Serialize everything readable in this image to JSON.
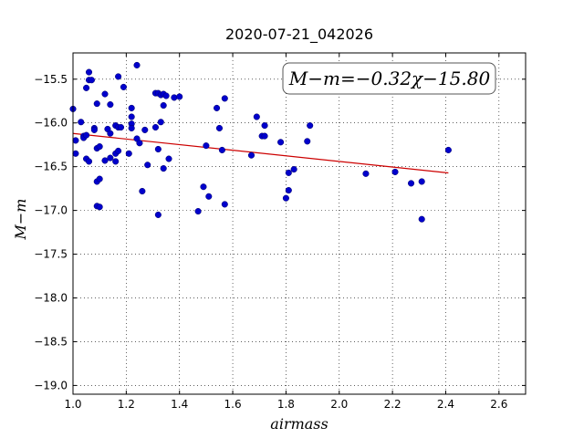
{
  "chart_data": {
    "type": "scatter",
    "title": "2020-07-21_042026",
    "xlabel": "airmass",
    "ylabel": "M−m",
    "xlim": [
      1.0,
      2.7
    ],
    "ylim": [
      -19.1,
      -15.2
    ],
    "y_inverted": true,
    "grid": true,
    "xticks": [
      1.0,
      1.2,
      1.4,
      1.6,
      1.8,
      2.0,
      2.2,
      2.4,
      2.6
    ],
    "xtick_labels": [
      "1.0",
      "1.2",
      "1.4",
      "1.6",
      "1.8",
      "2.0",
      "2.2",
      "2.4",
      "2.6"
    ],
    "yticks": [
      -15.5,
      -16.0,
      -16.5,
      -17.0,
      -17.5,
      -18.0,
      -18.5,
      -19.0
    ],
    "ytick_labels": [
      "−15.5",
      "−16.0",
      "−16.5",
      "−17.0",
      "−17.5",
      "−18.0",
      "−18.5",
      "−19.0"
    ],
    "annotation": "M−m=−0.32χ−15.80",
    "point_color": "#0000cc",
    "fit_color": "#cc0000",
    "fit": {
      "slope": -0.32,
      "intercept": -15.8,
      "x_range": [
        1.0,
        2.41
      ]
    },
    "points": [
      [
        1.0,
        -15.84
      ],
      [
        1.01,
        -16.2
      ],
      [
        1.01,
        -16.35
      ],
      [
        1.03,
        -15.99
      ],
      [
        1.04,
        -16.15
      ],
      [
        1.04,
        -16.17
      ],
      [
        1.05,
        -15.6
      ],
      [
        1.05,
        -16.14
      ],
      [
        1.05,
        -16.41
      ],
      [
        1.06,
        -15.42
      ],
      [
        1.06,
        -15.51
      ],
      [
        1.06,
        -16.44
      ],
      [
        1.07,
        -15.51
      ],
      [
        1.08,
        -16.06
      ],
      [
        1.08,
        -16.08
      ],
      [
        1.09,
        -15.78
      ],
      [
        1.09,
        -16.29
      ],
      [
        1.09,
        -16.67
      ],
      [
        1.09,
        -16.95
      ],
      [
        1.1,
        -16.27
      ],
      [
        1.1,
        -16.64
      ],
      [
        1.1,
        -16.96
      ],
      [
        1.12,
        -15.67
      ],
      [
        1.12,
        -16.43
      ],
      [
        1.13,
        -16.07
      ],
      [
        1.14,
        -16.12
      ],
      [
        1.14,
        -16.4
      ],
      [
        1.14,
        -15.79
      ],
      [
        1.16,
        -16.03
      ],
      [
        1.16,
        -16.35
      ],
      [
        1.16,
        -16.44
      ],
      [
        1.17,
        -15.47
      ],
      [
        1.17,
        -16.05
      ],
      [
        1.17,
        -16.32
      ],
      [
        1.18,
        -16.05
      ],
      [
        1.19,
        -15.59
      ],
      [
        1.21,
        -16.35
      ],
      [
        1.22,
        -15.83
      ],
      [
        1.22,
        -15.93
      ],
      [
        1.22,
        -16.01
      ],
      [
        1.22,
        -16.06
      ],
      [
        1.24,
        -15.34
      ],
      [
        1.24,
        -16.18
      ],
      [
        1.25,
        -16.23
      ],
      [
        1.26,
        -16.78
      ],
      [
        1.27,
        -16.08
      ],
      [
        1.28,
        -16.48
      ],
      [
        1.31,
        -16.05
      ],
      [
        1.31,
        -15.66
      ],
      [
        1.32,
        -15.66
      ],
      [
        1.32,
        -16.3
      ],
      [
        1.32,
        -17.05
      ],
      [
        1.33,
        -15.68
      ],
      [
        1.33,
        -15.99
      ],
      [
        1.34,
        -15.67
      ],
      [
        1.34,
        -15.8
      ],
      [
        1.34,
        -16.52
      ],
      [
        1.35,
        -15.69
      ],
      [
        1.36,
        -16.41
      ],
      [
        1.38,
        -15.71
      ],
      [
        1.4,
        -15.7
      ],
      [
        1.47,
        -17.01
      ],
      [
        1.49,
        -16.73
      ],
      [
        1.5,
        -16.26
      ],
      [
        1.51,
        -16.84
      ],
      [
        1.54,
        -15.83
      ],
      [
        1.55,
        -16.06
      ],
      [
        1.56,
        -16.31
      ],
      [
        1.57,
        -15.72
      ],
      [
        1.57,
        -16.93
      ],
      [
        1.67,
        -16.37
      ],
      [
        1.69,
        -15.93
      ],
      [
        1.71,
        -16.15
      ],
      [
        1.72,
        -16.03
      ],
      [
        1.72,
        -16.15
      ],
      [
        1.78,
        -16.22
      ],
      [
        1.8,
        -16.86
      ],
      [
        1.81,
        -16.57
      ],
      [
        1.81,
        -16.77
      ],
      [
        1.83,
        -16.53
      ],
      [
        1.88,
        -16.21
      ],
      [
        1.89,
        -16.03
      ],
      [
        2.1,
        -16.58
      ],
      [
        2.21,
        -16.56
      ],
      [
        2.27,
        -16.69
      ],
      [
        2.31,
        -16.67
      ],
      [
        2.31,
        -17.1
      ],
      [
        2.41,
        -16.31
      ]
    ]
  }
}
